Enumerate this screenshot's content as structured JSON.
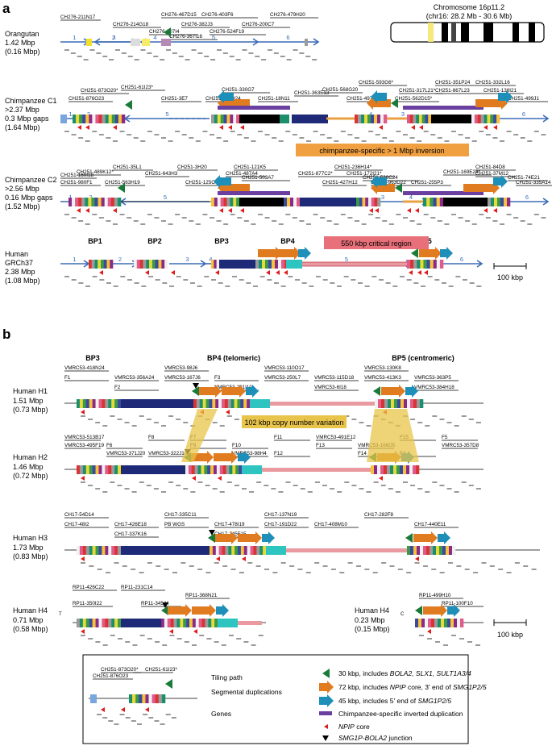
{
  "panel_a": {
    "label": "a",
    "chromosome": {
      "title": "Chromosome 16p11.2",
      "subtitle": "(chr16: 28.2 Mb - 30.6 Mb)"
    },
    "orangutan": {
      "name": "Orangutan",
      "size": "1.42 Mbp",
      "sub": "(0.16 Mbp)",
      "clones": [
        "CH276-211N17",
        "CH276-214G18",
        "CH276-307I4",
        "CH276-367I16",
        "CH276-382J3",
        "CH276-524F19",
        "CH276-200C7",
        "CH276-467D15",
        "CH276-403F6",
        "CH276-479H20"
      ],
      "segments": [
        "1",
        "2",
        "3",
        "4",
        "5",
        "6"
      ]
    },
    "chimp_c1": {
      "name": "Chimpanzee C1",
      "size": ">2.37 Mbp",
      "gaps": "0.3 Mbp gaps",
      "sub": "(1.64 Mbp)",
      "clones": [
        "CH251-873O20*",
        "CH251-61I23*",
        "CH251-876O23",
        "CH251-3E7",
        "CH251-104H24",
        "CH251-330G7",
        "CH251-18N11",
        "CH251-363E13",
        "CH251-568G20",
        "CH251-593G6*",
        "CH251-497M24",
        "CH251-317L21*",
        "CH251-351P24",
        "CH251-562D15*",
        "CH251-867L23",
        "CH251-332L16",
        "CH251-138I21",
        "CH251-499J1"
      ],
      "segments": [
        "1",
        "2",
        "5",
        "4",
        "3",
        "6"
      ],
      "inversion_label": "chimpanzee-specific > 1 Mbp inversion"
    },
    "chimp_c2": {
      "name": "Chimpanzee C2",
      "size": ">2.56 Mbp",
      "gaps": "0.16 Mbp gaps",
      "sub": "(1.52 Mbp)",
      "clones": [
        "CH251-160I18",
        "CH251-35L1",
        "CH251-489K12*",
        "CH251-3H20",
        "CH251-121K5",
        "CH251-236H14*",
        "CH251-169E24*",
        "CH251-84D8",
        "CH251-980F1",
        "CH251-563H19",
        "CH251-643H3",
        "CH251-125O4",
        "CH251-487A4",
        "CH251-503A7",
        "CH251-877C2*",
        "CH251-172I21*",
        "CH251-526C24",
        "CH251-427H12",
        "CH251-963D22",
        "CH251-255P3",
        "CH251-37M12",
        "CH251-74E21",
        "CH251-335A14"
      ],
      "segments": [
        "1",
        "2",
        "5",
        "3",
        "4",
        "6"
      ]
    },
    "human": {
      "name": "Human",
      "build": "GRCh37",
      "size": "2.38 Mbp",
      "sub": "(1.08 Mbp)",
      "bps": [
        "BP1",
        "BP2",
        "BP3",
        "BP4",
        "BP5"
      ],
      "critical": "550 kbp critical region",
      "segments": [
        "1",
        "2",
        "3",
        "4",
        "5",
        "6"
      ]
    },
    "scale": "100 kbp"
  },
  "panel_b": {
    "label": "b",
    "headers": [
      "BP3",
      "BP4 (telomeric)",
      "BP5 (centromeric)"
    ],
    "h1": {
      "name": "Human H1",
      "size": "1.51 Mbp",
      "sub": "(0.73 Mbp)",
      "clones": [
        "VMRC53-418N24",
        "VMRC53-356A24",
        "VMRC53-98J6",
        "F3",
        "VMRC53-110O17",
        "VMRC53-115D18",
        "VMRC53-130K8",
        "VMRC53-363P5",
        "F1",
        "F2",
        "VMRC53-167J6",
        "VMRC53-201I10",
        "VMRC53-250L7",
        "VMRC53-6I18",
        "VMRC53-413K3",
        "VMRC53-384H18"
      ]
    },
    "h2": {
      "name": "Human H2",
      "size": "1.46 Mbp",
      "sub": "(0.72 Mbp)",
      "clones": [
        "VMRC53-513B17",
        "F6",
        "VMRC53-322J10",
        "F7",
        "F10",
        "F12",
        "VMRC53-491E12",
        "VMRC53-166O5",
        "F4",
        "F5",
        "VMRC53-495F19",
        "VMRC53-371J20",
        "F8",
        "F9",
        "VMRC53-98H4",
        "F11",
        "F13",
        "F14",
        "F15",
        "VMRC53-357D8"
      ]
    },
    "cnv_label": "102 kbp copy number variation",
    "h3": {
      "name": "Human H3",
      "size": "1.73 Mbp",
      "sub": "(0.83 Mbp)",
      "clones": [
        "CH17-54D14",
        "CH17-426E18",
        "CH17-335C11",
        "CH17-478I19",
        "CH17-137N19",
        "CH17-408M10",
        "CH17-282F8",
        "CH17-440E11",
        "CH17-48I2",
        "CH17-337K16",
        "PB WGS",
        "CH17-245F15",
        "CH17-191D22"
      ]
    },
    "h4t": {
      "name": "Human H4",
      "sub_t": "T",
      "size": "0.71 Mbp",
      "sub": "(0.58 Mbp)",
      "clones": [
        "RP11-426C22",
        "RP11-231C14",
        "RP11-368N21",
        "RP11-350I22",
        "RP11-345J4"
      ]
    },
    "h4c": {
      "name": "Human H4",
      "sub_c": "C",
      "size": "0.23 Mbp",
      "sub": "(0.15 Mbp)",
      "clones": [
        "RP11-499H10",
        "RP11-100F10"
      ]
    },
    "scale": "100 kbp"
  },
  "legend": {
    "example_clones": [
      "CH251-873O20*",
      "CH251-61I23*",
      "CH251-876O23"
    ],
    "left": [
      "Tiling path",
      "Segmental duplications",
      "Genes"
    ],
    "right": [
      {
        "pre": "30 kbp, includes ",
        "it": "BOLA2, SLX1, SULT1A3/4",
        "post": ""
      },
      {
        "pre": "72 kbp, includes ",
        "it": "NPIP",
        "post": " core, 3' end of ",
        "it2": "SMG1P2/5"
      },
      {
        "pre": "45 kbp, includes 5' end of ",
        "it": "SMG1P2/5",
        "post": ""
      },
      {
        "pre": "Chimpanzee-specific inverted duplication",
        "it": "",
        "post": ""
      },
      {
        "pre": "",
        "it": "NPIP",
        "post": " core"
      },
      {
        "pre": "",
        "it": "SMG1P-BOLA2",
        "post": " junction"
      }
    ]
  },
  "colors": {
    "blue": "#3b6bb5",
    "green": "#1a7a3a",
    "orange": "#e07b1f",
    "teal": "#1d8fb8",
    "purple": "#6a3fa0",
    "red": "#e01b1b",
    "navy": "#1e2a78",
    "pink": "#d9a0a8",
    "yellow": "#f2e02a",
    "cnv": "#e8c44a",
    "inv": "#f0a040",
    "crit": "#e8707a"
  }
}
